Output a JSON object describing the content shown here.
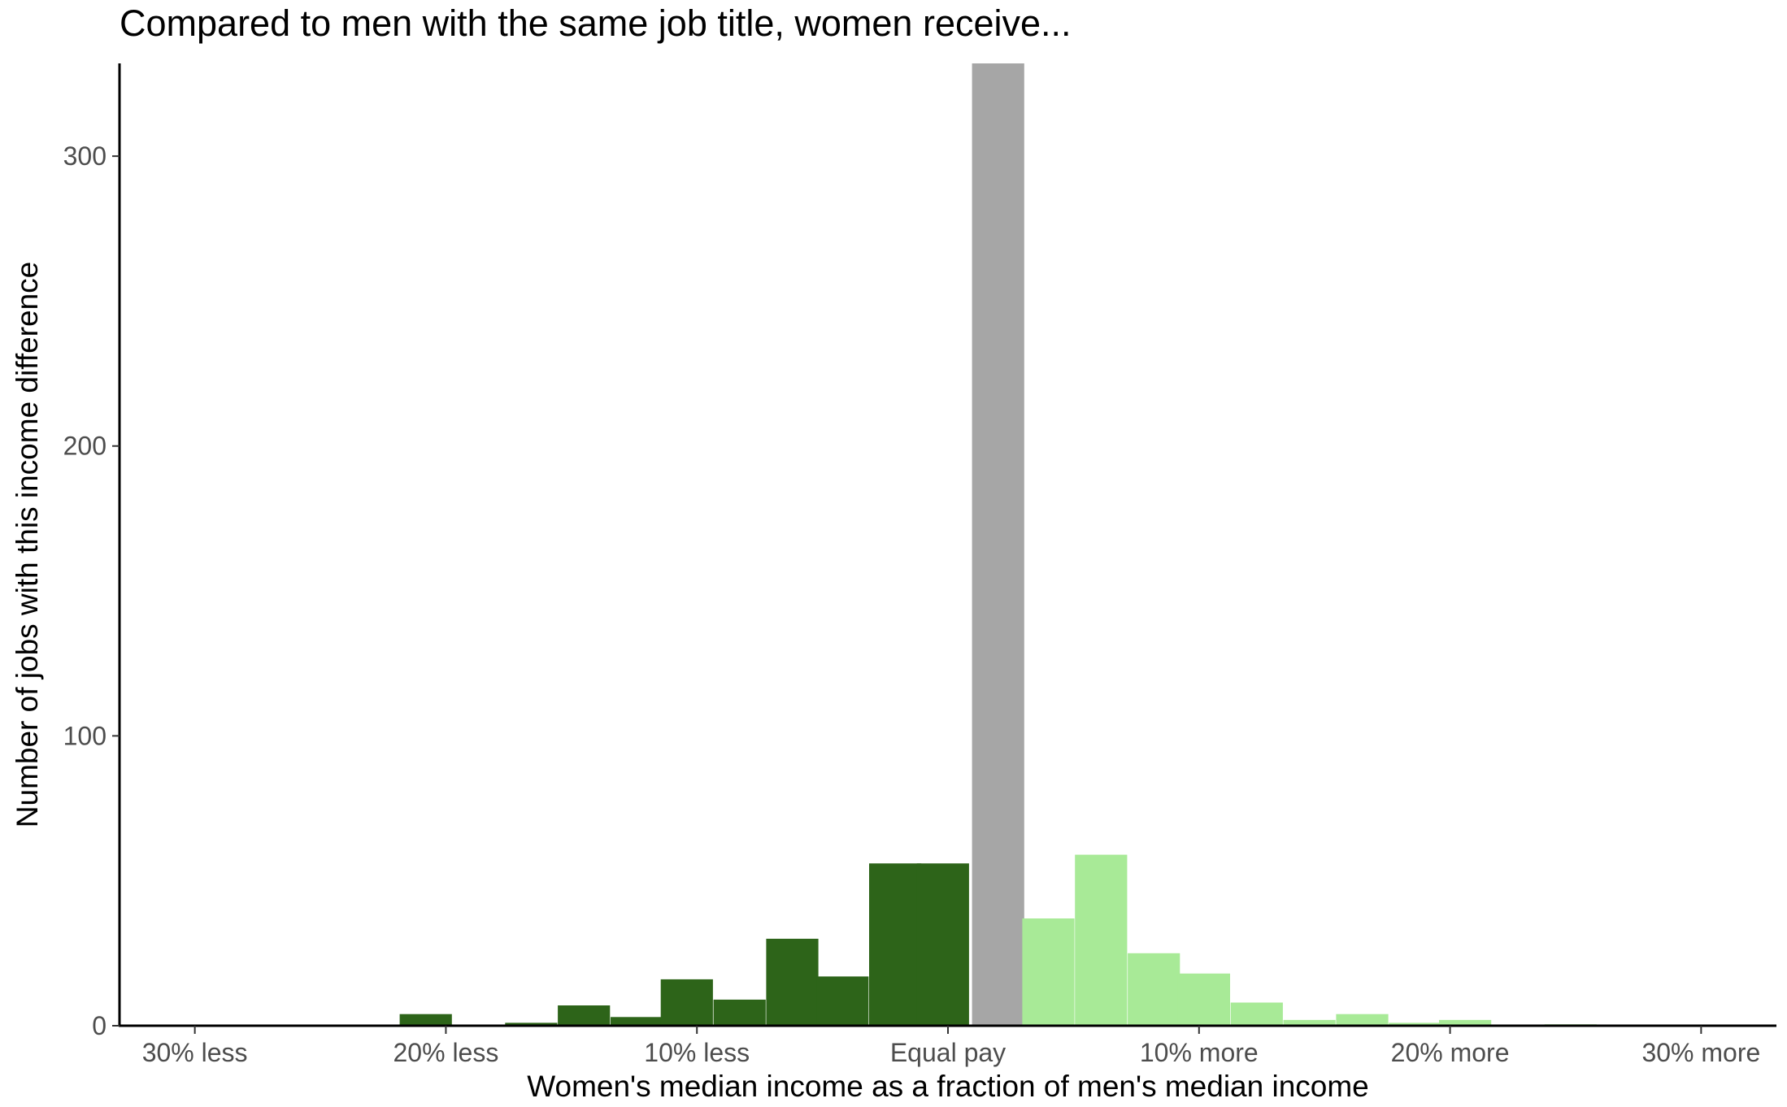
{
  "chart_data": {
    "type": "bar",
    "title": "Compared to men with the same job title, women receive...",
    "xlabel": "Women's median income as a fraction of men's median income",
    "ylabel": "Number of jobs with this income difference",
    "x_ticks": [
      {
        "value": -30,
        "label": "30% less"
      },
      {
        "value": -20,
        "label": "20% less"
      },
      {
        "value": -10,
        "label": "10% less"
      },
      {
        "value": 0,
        "label": "Equal pay"
      },
      {
        "value": 10,
        "label": "10% more"
      },
      {
        "value": 20,
        "label": "20% more"
      },
      {
        "value": 30,
        "label": "30% more"
      }
    ],
    "y_ticks": [
      0,
      100,
      200,
      300
    ],
    "xlim": [
      -33,
      33
    ],
    "ylim": [
      0,
      332
    ],
    "bin_width": 2.08,
    "colors": {
      "less": "#2d6419",
      "equal": "#a6a6a6",
      "more": "#a8ea97"
    },
    "grid": false,
    "bins": [
      {
        "x": -20.8,
        "count": 4,
        "group": "less"
      },
      {
        "x": -16.6,
        "count": 1,
        "group": "less"
      },
      {
        "x": -14.5,
        "count": 7,
        "group": "less"
      },
      {
        "x": -12.4,
        "count": 3,
        "group": "less"
      },
      {
        "x": -10.4,
        "count": 16,
        "group": "less"
      },
      {
        "x": -8.3,
        "count": 9,
        "group": "less"
      },
      {
        "x": -6.2,
        "count": 30,
        "group": "less"
      },
      {
        "x": -4.2,
        "count": 17,
        "group": "less"
      },
      {
        "x": -2.1,
        "count": 56,
        "group": "less"
      },
      {
        "x": -0.2,
        "count": 56,
        "group": "less"
      },
      {
        "x": 2.0,
        "count": 332,
        "group": "equal"
      },
      {
        "x": 4.0,
        "count": 37,
        "group": "more"
      },
      {
        "x": 6.1,
        "count": 59,
        "group": "more"
      },
      {
        "x": 8.2,
        "count": 25,
        "group": "more"
      },
      {
        "x": 10.2,
        "count": 18,
        "group": "more"
      },
      {
        "x": 12.3,
        "count": 8,
        "group": "more"
      },
      {
        "x": 14.4,
        "count": 2,
        "group": "more"
      },
      {
        "x": 16.5,
        "count": 4,
        "group": "more"
      },
      {
        "x": 18.6,
        "count": 1,
        "group": "more"
      },
      {
        "x": 20.6,
        "count": 2,
        "group": "more"
      },
      {
        "x": 24.8,
        "count": 0.5,
        "group": "more"
      }
    ]
  }
}
